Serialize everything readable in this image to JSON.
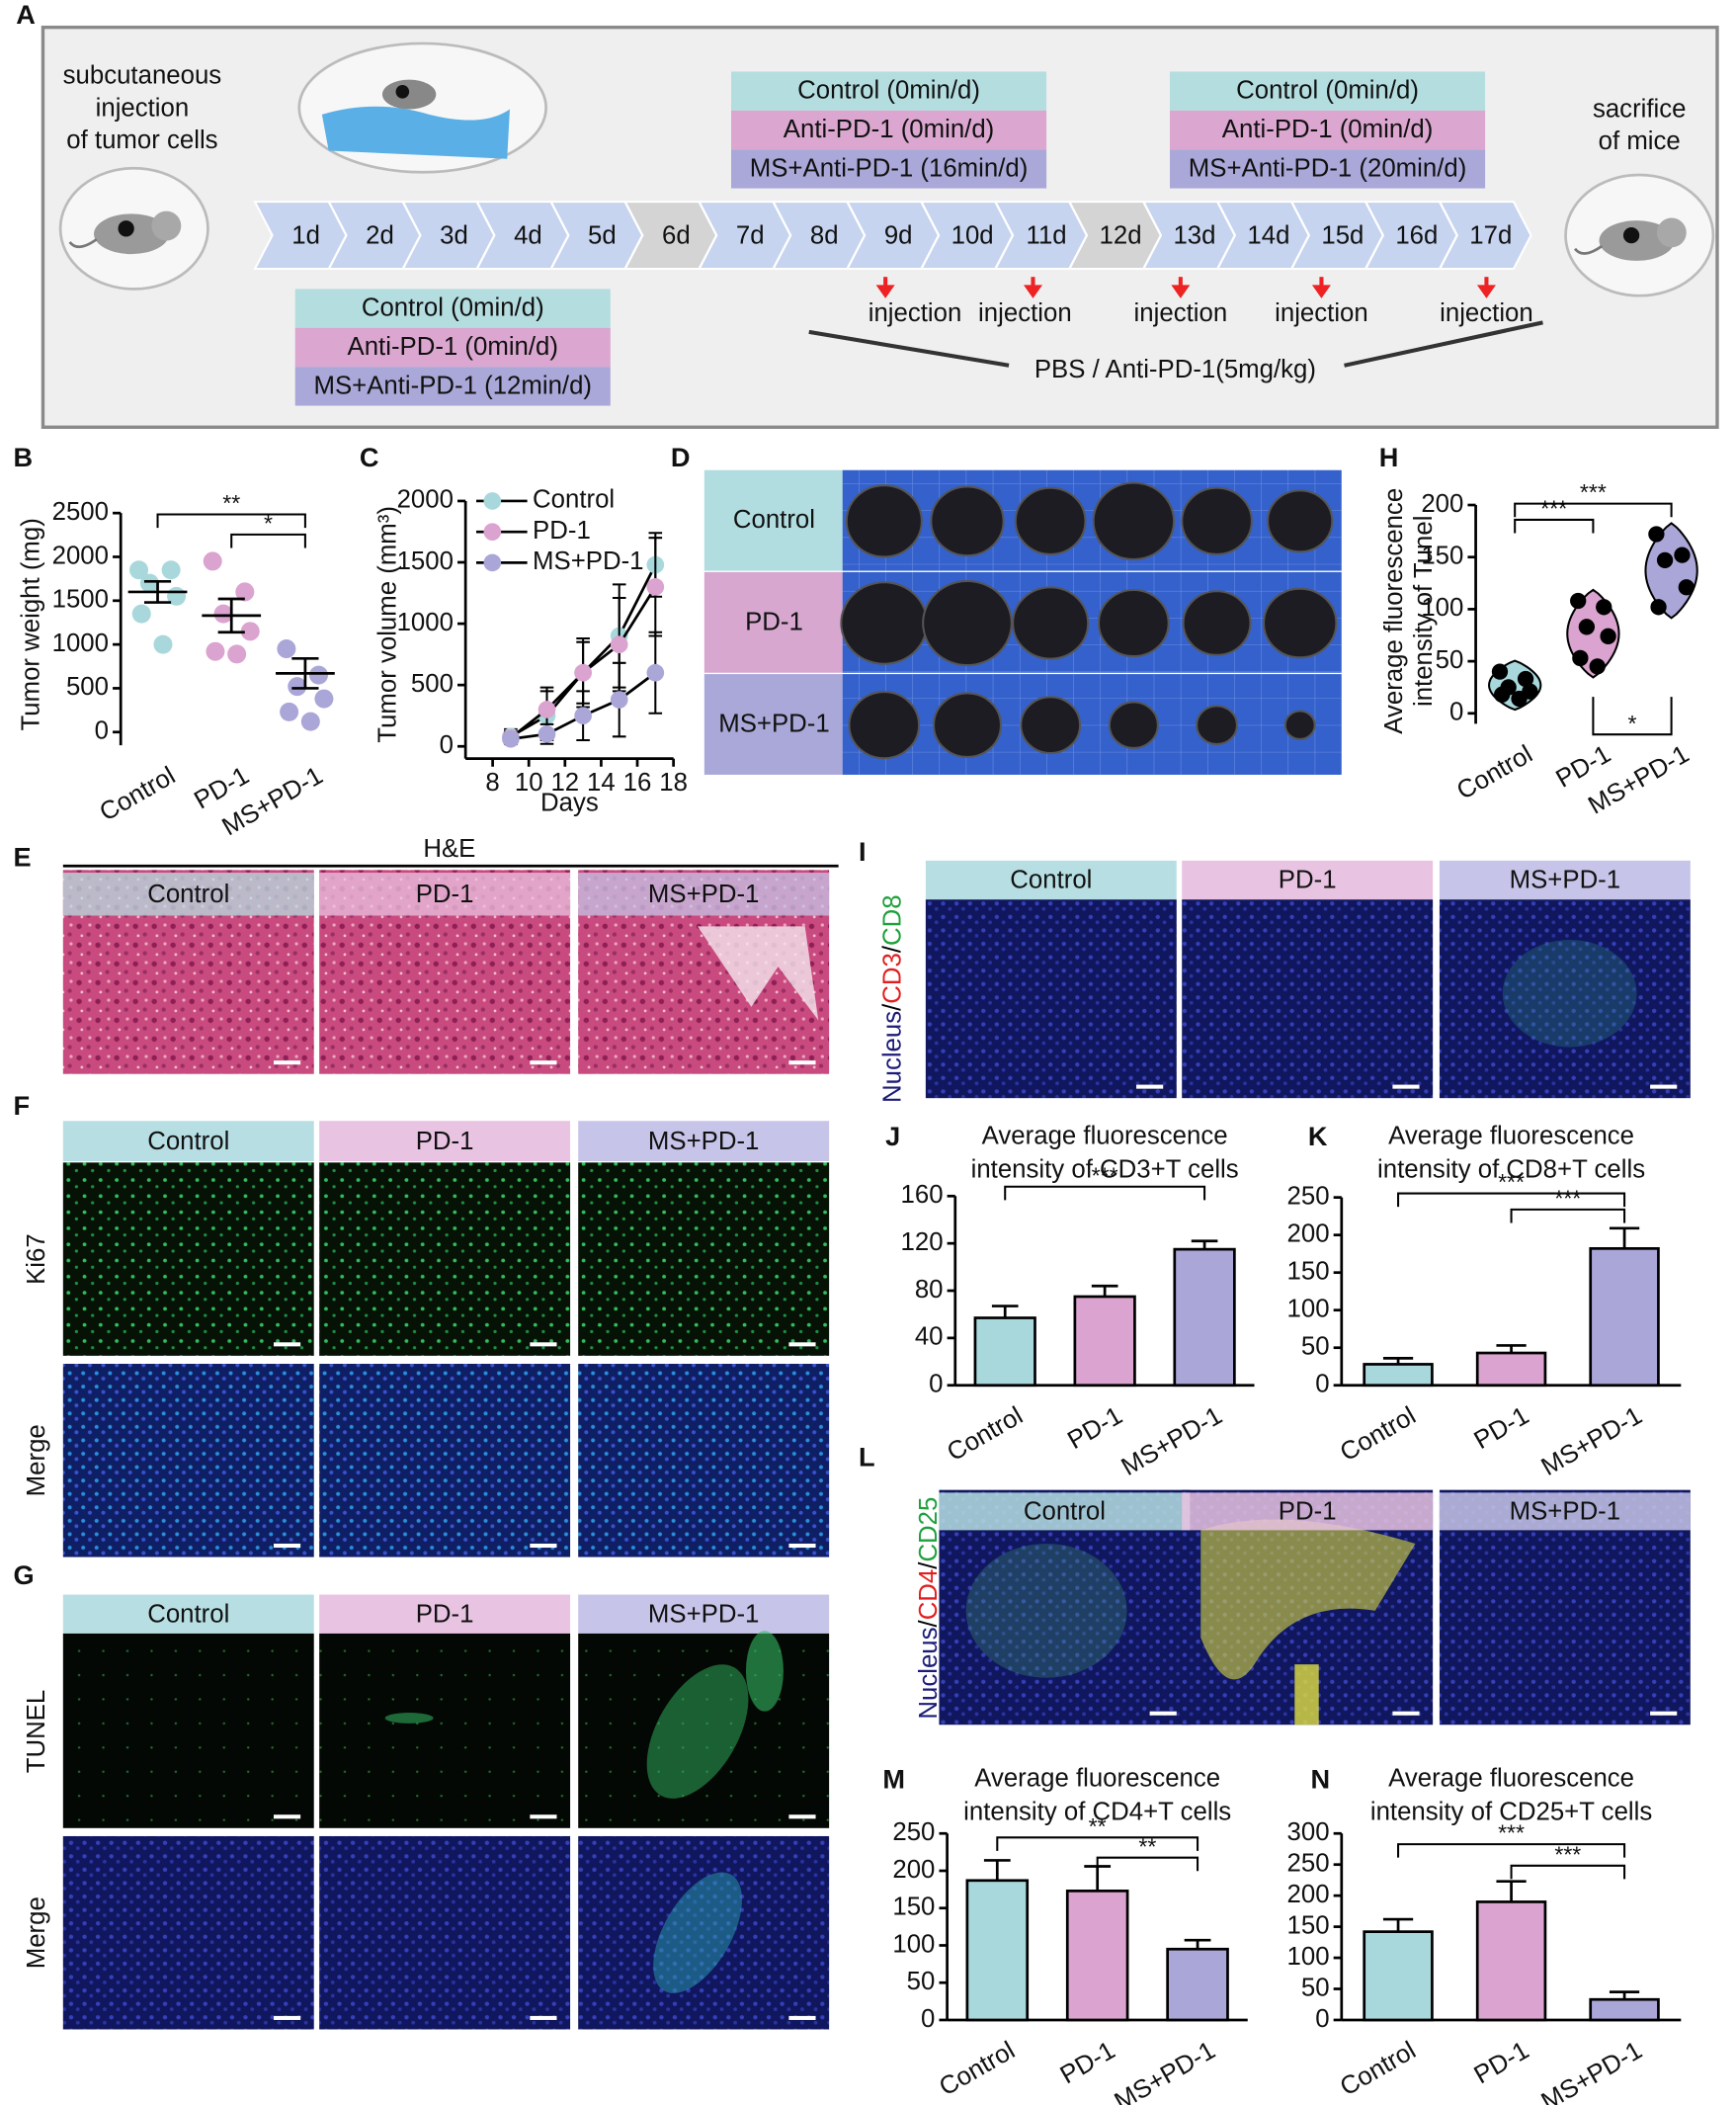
{
  "diagram": {
    "panel_label": "A",
    "start_label": [
      "subcutaneous",
      "injection",
      "of tumor cells"
    ],
    "end_label": [
      "sacrifice",
      "of mice"
    ],
    "days": [
      "1d",
      "2d",
      "3d",
      "4d",
      "5d",
      "6d",
      "7d",
      "8d",
      "9d",
      "10d",
      "11d",
      "12d",
      "13d",
      "14d",
      "15d",
      "16d",
      "17d"
    ],
    "groups": [
      [
        "Control (0min/d)",
        "Anti-PD-1 (0min/d)",
        "MS+Anti-PD-1 (12min/d)"
      ],
      [
        "Control (0min/d)",
        "Anti-PD-1 (0min/d)",
        "MS+Anti-PD-1 (16min/d)"
      ],
      [
        "Control (0min/d)",
        "Anti-PD-1 (0min/d)",
        "MS+Anti-PD-1 (20min/d)"
      ]
    ],
    "injections": [
      "injection",
      "injection",
      "injection",
      "injection",
      "injection"
    ],
    "treatment": "PBS / Anti-PD-1(5mg/kg)"
  },
  "panels": {
    "D": {
      "label": "D",
      "rows": [
        "Control",
        "PD-1",
        "MS+PD-1"
      ]
    },
    "E": {
      "label": "E",
      "header": "H&E",
      "columns": [
        "Control",
        "PD-1",
        "MS+PD-1"
      ]
    },
    "F": {
      "label": "F",
      "columns": [
        "Control",
        "PD-1",
        "MS+PD-1"
      ],
      "rows": [
        "Ki67",
        "Merge"
      ]
    },
    "G": {
      "label": "G",
      "columns": [
        "Control",
        "PD-1",
        "MS+PD-1"
      ],
      "rows": [
        "TUNEL",
        "Merge"
      ]
    },
    "I": {
      "label": "I",
      "columns": [
        "Control",
        "PD-1",
        "MS+PD-1"
      ],
      "stain": [
        {
          "text": "Nucleus",
          "color": "#1c1c78"
        },
        {
          "text": "/",
          "color": "#000000"
        },
        {
          "text": "CD3",
          "color": "#e02020"
        },
        {
          "text": "/",
          "color": "#000000"
        },
        {
          "text": "CD8",
          "color": "#1fa03c"
        }
      ]
    },
    "L": {
      "label": "L",
      "columns": [
        "Control",
        "PD-1",
        "MS+PD-1"
      ],
      "stain": [
        {
          "text": "Nucleus",
          "color": "#1c1c78"
        },
        {
          "text": "/",
          "color": "#000000"
        },
        {
          "text": "CD4",
          "color": "#e02020"
        },
        {
          "text": "/",
          "color": "#000000"
        },
        {
          "text": "CD25",
          "color": "#1fa03c"
        }
      ]
    }
  },
  "chart_data": [
    {
      "type": "dotplot",
      "panel_label": "B",
      "categories": [
        "Control",
        "PD-1",
        "MS+PD-1"
      ],
      "colors": [
        "#a8d8dc",
        "#dba3cf",
        "#aaa6d8"
      ],
      "values": [
        [
          1850,
          1850,
          1700,
          1550,
          1350,
          1000
        ],
        [
          1950,
          1600,
          1350,
          1150,
          920,
          890
        ],
        [
          950,
          650,
          520,
          380,
          230,
          120
        ]
      ],
      "means": [
        1600,
        1330,
        670
      ],
      "errors": [
        120,
        190,
        170
      ],
      "ylabel": "Tumor weight (mg)",
      "ylim": [
        -150,
        2500
      ],
      "yticks": [
        0,
        500,
        1000,
        1500,
        2000,
        2500
      ],
      "annotations": [
        "**",
        "*"
      ]
    },
    {
      "type": "line",
      "panel_label": "C",
      "x": [
        9,
        11,
        13,
        15,
        17
      ],
      "series": [
        {
          "name": "Control",
          "color": "#a8d8dc",
          "values": [
            80,
            250,
            600,
            900,
            1480
          ],
          "errors": [
            60,
            200,
            280,
            420,
            260
          ]
        },
        {
          "name": "PD-1",
          "color": "#dba3cf",
          "values": [
            70,
            300,
            600,
            830,
            1300
          ],
          "errors": [
            50,
            180,
            250,
            380,
            400
          ]
        },
        {
          "name": "MS+PD-1",
          "color": "#aaa6d8",
          "values": [
            60,
            100,
            250,
            380,
            600
          ],
          "errors": [
            40,
            80,
            200,
            300,
            330
          ]
        }
      ],
      "xlabel": "Days",
      "ylabel": "Tumor volume (mm³)",
      "xlim": [
        6.5,
        18
      ],
      "xticks": [
        8,
        10,
        12,
        14,
        16,
        18
      ],
      "ylim": [
        -100,
        2000
      ],
      "yticks": [
        0,
        500,
        1000,
        1500,
        2000
      ]
    },
    {
      "type": "violin",
      "panel_label": "H",
      "categories": [
        "Control",
        "PD-1",
        "MS+PD-1"
      ],
      "colors": [
        "#a8d8dc",
        "#dba3cf",
        "#aaa6d8"
      ],
      "values": [
        [
          40,
          33,
          25,
          21,
          18,
          14
        ],
        [
          108,
          102,
          83,
          74,
          53,
          45
        ],
        [
          172,
          152,
          147,
          121,
          102
        ]
      ],
      "ylabel": [
        "Average fluorescence",
        "intensity of Tunel"
      ],
      "ylim": [
        -10,
        200
      ],
      "yticks": [
        0,
        50,
        100,
        150,
        200
      ],
      "annotations": [
        "***",
        "***",
        "*"
      ]
    },
    {
      "type": "bar",
      "panel_label": "J",
      "title": [
        "Average fluorescence",
        "intensity of CD3+T cells"
      ],
      "categories": [
        "Control",
        "PD-1",
        "MS+PD-1"
      ],
      "colors": [
        "#a8d8dc",
        "#dba3cf",
        "#aaa6d8"
      ],
      "values": [
        57,
        75,
        115
      ],
      "errors": [
        10,
        9,
        7
      ],
      "ylim": [
        0,
        160
      ],
      "yticks": [
        0,
        40,
        80,
        120,
        160
      ],
      "annotations": [
        "***"
      ]
    },
    {
      "type": "bar",
      "panel_label": "K",
      "title": [
        "Average fluorescence",
        "intensity of CD8+T cells"
      ],
      "categories": [
        "Control",
        "PD-1",
        "MS+PD-1"
      ],
      "colors": [
        "#a8d8dc",
        "#dba3cf",
        "#aaa6d8"
      ],
      "values": [
        28,
        43,
        182
      ],
      "errors": [
        8,
        10,
        27
      ],
      "ylim": [
        0,
        250
      ],
      "yticks": [
        0,
        50,
        100,
        150,
        200,
        250
      ],
      "annotations": [
        "***",
        "***"
      ]
    },
    {
      "type": "bar",
      "panel_label": "M",
      "title": [
        "Average fluorescence",
        "intensity of CD4+T cells"
      ],
      "categories": [
        "Control",
        "PD-1",
        "MS+PD-1"
      ],
      "colors": [
        "#a8d8dc",
        "#dba3cf",
        "#aaa6d8"
      ],
      "values": [
        187,
        173,
        95
      ],
      "errors": [
        27,
        33,
        12
      ],
      "ylim": [
        0,
        250
      ],
      "yticks": [
        0,
        50,
        100,
        150,
        200,
        250
      ],
      "annotations": [
        "**",
        "**"
      ]
    },
    {
      "type": "bar",
      "panel_label": "N",
      "title": [
        "Average fluorescence",
        "intensity of CD25+T cells"
      ],
      "categories": [
        "Control",
        "PD-1",
        "MS+PD-1"
      ],
      "colors": [
        "#a8d8dc",
        "#dba3cf",
        "#aaa6d8"
      ],
      "values": [
        142,
        190,
        33
      ],
      "errors": [
        20,
        33,
        12
      ],
      "ylim": [
        0,
        300
      ],
      "yticks": [
        0,
        50,
        100,
        150,
        200,
        250,
        300
      ],
      "annotations": [
        "***",
        "***"
      ]
    }
  ]
}
